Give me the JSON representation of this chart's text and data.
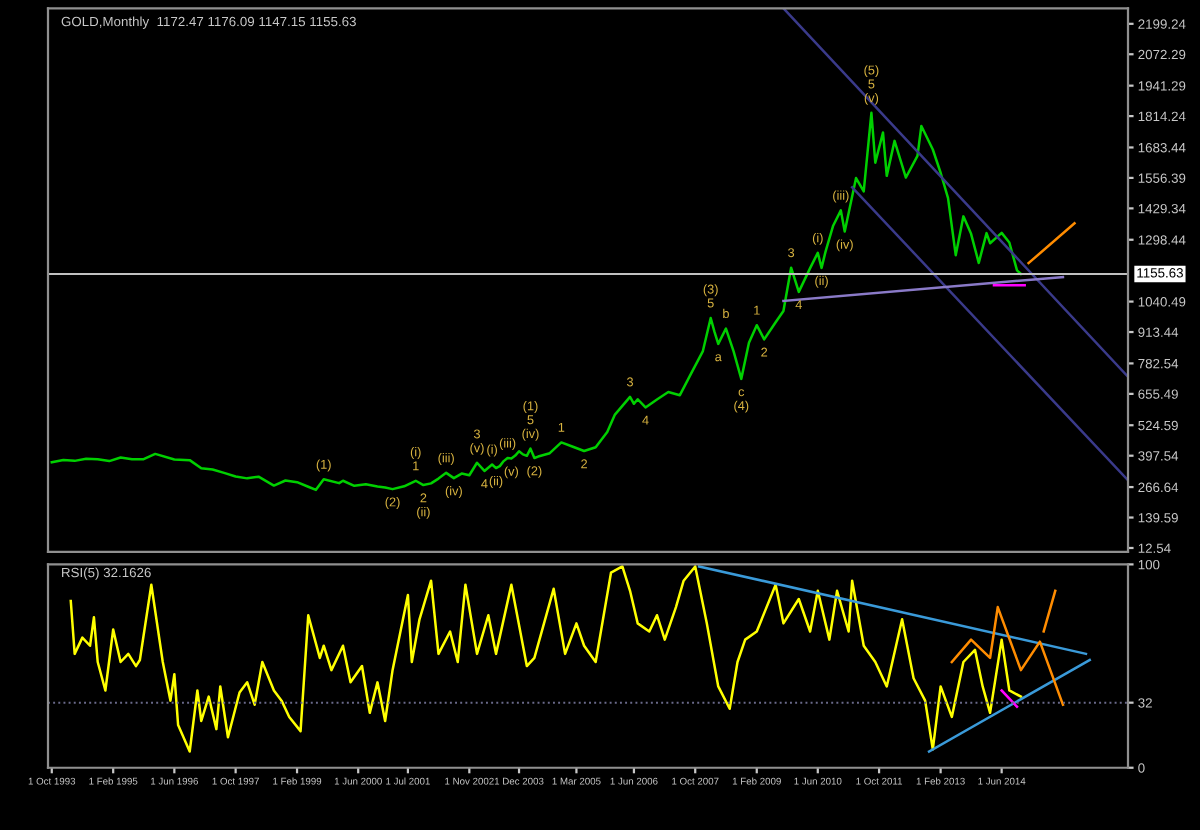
{
  "chart_data": [
    {
      "type": "line",
      "title": "GOLD,Monthly  1172.47 1176.09 1147.15 1155.63",
      "xlim": [
        "1993-09",
        "2017-03"
      ],
      "ylim": [
        -4,
        2264
      ],
      "yticks": [
        12.54,
        139.59,
        266.64,
        397.54,
        524.59,
        655.49,
        782.54,
        913.44,
        1040.49,
        1298.44,
        1429.34,
        1556.39,
        1683.44,
        1814.24,
        1941.29,
        2072.29,
        2199.24
      ],
      "tick_labels": "y",
      "ref_lines": [
        {
          "axis": "y",
          "value": 1155.63,
          "label": "1155.63",
          "color": "#c0c0c0"
        }
      ],
      "series": [
        {
          "color": "#00d000",
          "x": [
            "1993-10",
            "1994-01",
            "1994-04",
            "1994-07",
            "1994-10",
            "1995-01",
            "1995-04",
            "1995-07",
            "1995-10",
            "1996-01",
            "1996-06",
            "1996-10",
            "1997-01",
            "1997-04",
            "1997-07",
            "1997-10",
            "1998-01",
            "1998-04",
            "1998-08",
            "1998-11",
            "1999-02",
            "1999-05",
            "1999-07",
            "1999-09",
            "2000-01",
            "2000-02",
            "2000-05",
            "2000-08",
            "2000-11",
            "2001-01",
            "2001-03",
            "2001-06",
            "2001-09",
            "2001-11",
            "2002-01",
            "2002-03",
            "2002-05",
            "2002-07",
            "2002-09",
            "2002-11",
            "2003-01",
            "2003-03",
            "2003-05",
            "2003-06",
            "2003-07",
            "2003-08",
            "2003-09",
            "2003-10",
            "2003-11",
            "2003-12",
            "2004-01",
            "2004-02",
            "2004-03",
            "2004-04",
            "2004-05",
            "2004-08",
            "2004-11",
            "2005-02",
            "2005-05",
            "2005-08",
            "2005-11",
            "2006-01",
            "2006-05",
            "2006-06",
            "2006-07",
            "2006-09",
            "2006-12",
            "2007-03",
            "2007-06",
            "2007-09",
            "2007-12",
            "2008-02",
            "2008-03",
            "2008-04",
            "2008-06",
            "2008-08",
            "2008-10",
            "2008-12",
            "2009-02",
            "2009-04",
            "2009-07",
            "2009-09",
            "2009-11",
            "2010-01",
            "2010-04",
            "2010-06",
            "2010-07",
            "2010-08",
            "2010-10",
            "2010-12",
            "2011-01",
            "2011-04",
            "2011-06",
            "2011-08",
            "2011-09",
            "2011-11",
            "2011-12",
            "2012-02",
            "2012-05",
            "2012-08",
            "2012-09",
            "2012-12",
            "2013-02",
            "2013-04",
            "2013-06",
            "2013-08",
            "2013-10",
            "2013-12",
            "2014-02",
            "2014-03",
            "2014-06",
            "2014-08",
            "2014-10",
            "2014-11"
          ],
          "values": [
            370,
            380,
            376,
            385,
            383,
            375,
            390,
            383,
            383,
            405,
            382,
            379,
            345,
            340,
            326,
            311,
            303,
            310,
            273,
            294,
            287,
            268,
            255,
            299,
            283,
            293,
            272,
            278,
            269,
            265,
            258,
            270,
            293,
            275,
            282,
            302,
            326,
            304,
            323,
            316,
            368,
            334,
            361,
            346,
            354,
            375,
            388,
            386,
            398,
            416,
            403,
            397,
            427,
            388,
            394,
            408,
            453,
            435,
            417,
            433,
            496,
            569,
            643,
            614,
            633,
            599,
            632,
            663,
            650,
            743,
            834,
            972,
            916,
            864,
            928,
            833,
            718,
            869,
            942,
            883,
            954,
            1001,
            1182,
            1081,
            1180,
            1244,
            1181,
            1248,
            1357,
            1421,
            1333,
            1556,
            1500,
            1828,
            1620,
            1746,
            1565,
            1711,
            1558,
            1648,
            1773,
            1675,
            1578,
            1472,
            1234,
            1396,
            1323,
            1202,
            1326,
            1284,
            1327,
            1287,
            1171,
            1156
          ]
        },
        {
          "color": "#3a3a8a",
          "x": [
            "2009-09",
            "2017-03"
          ],
          "values": [
            2264,
            727
          ]
        },
        {
          "color": "#3a3a8a",
          "x": [
            "2011-03",
            "2017-03"
          ],
          "values": [
            1517,
            295
          ]
        },
        {
          "color": "#8a7ac8",
          "x": [
            "2009-09",
            "2015-10"
          ],
          "values": [
            1043,
            1143
          ]
        },
        {
          "color": "#ff8c00",
          "x": [
            "2016-01",
            "2015-01"
          ],
          "values": [
            1367,
            1201
          ]
        },
        {
          "color": "#ff00ff",
          "x": [
            "2014-04",
            "2014-12"
          ],
          "values": [
            1109,
            1109
          ]
        }
      ],
      "annotations": [
        {
          "text": "(1)",
          "x": "1999-09",
          "y": 299
        },
        {
          "text": "(2)",
          "x": "2001-03",
          "y": 258
        },
        {
          "text": "1",
          "x": "2001-09",
          "y": 293
        },
        {
          "text": "(i)",
          "x": "2001-09",
          "y": 293
        },
        {
          "text": "2",
          "x": "2001-11",
          "y": 275
        },
        {
          "text": "(ii)",
          "x": "2001-11",
          "y": 275
        },
        {
          "text": "(iii)",
          "x": "2002-05",
          "y": 326
        },
        {
          "text": "(iv)",
          "x": "2002-07",
          "y": 304
        },
        {
          "text": "(v)",
          "x": "2003-01",
          "y": 368
        },
        {
          "text": "3",
          "x": "2003-01",
          "y": 368
        },
        {
          "text": "4",
          "x": "2003-03",
          "y": 334
        },
        {
          "text": "(i)",
          "x": "2003-05",
          "y": 361
        },
        {
          "text": "(ii)",
          "x": "2003-06",
          "y": 346
        },
        {
          "text": "(iii)",
          "x": "2003-09",
          "y": 388
        },
        {
          "text": "(v)",
          "x": "2003-10",
          "y": 386
        },
        {
          "text": "(iv)",
          "x": "2004-03",
          "y": 427
        },
        {
          "text": "5",
          "x": "2004-03",
          "y": 427
        },
        {
          "text": "(1)",
          "x": "2004-03",
          "y": 427
        },
        {
          "text": "(2)",
          "x": "2004-04",
          "y": 388
        },
        {
          "text": "1",
          "x": "2004-11",
          "y": 453
        },
        {
          "text": "2",
          "x": "2005-05",
          "y": 417
        },
        {
          "text": "3",
          "x": "2006-05",
          "y": 643
        },
        {
          "text": "4",
          "x": "2006-09",
          "y": 599
        },
        {
          "text": "5",
          "x": "2008-02",
          "y": 972
        },
        {
          "text": "(3)",
          "x": "2008-02",
          "y": 972
        },
        {
          "text": "a",
          "x": "2008-04",
          "y": 864
        },
        {
          "text": "b",
          "x": "2008-06",
          "y": 928
        },
        {
          "text": "c",
          "x": "2008-10",
          "y": 718
        },
        {
          "text": "(4)",
          "x": "2008-10",
          "y": 718
        },
        {
          "text": "1",
          "x": "2009-02",
          "y": 942
        },
        {
          "text": "2",
          "x": "2009-04",
          "y": 883
        },
        {
          "text": "3",
          "x": "2009-11",
          "y": 1182
        },
        {
          "text": "4",
          "x": "2010-01",
          "y": 1081
        },
        {
          "text": "(i)",
          "x": "2010-06",
          "y": 1244
        },
        {
          "text": "(ii)",
          "x": "2010-07",
          "y": 1181
        },
        {
          "text": "(iii)",
          "x": "2010-12",
          "y": 1421
        },
        {
          "text": "(iv)",
          "x": "2011-01",
          "y": 1333
        },
        {
          "text": "(v)",
          "x": "2011-08",
          "y": 1828
        },
        {
          "text": "5",
          "x": "2011-08",
          "y": 1828
        },
        {
          "text": "(5)",
          "x": "2011-08",
          "y": 1828
        }
      ]
    },
    {
      "type": "line",
      "title": "RSI(5) 32.1626",
      "xlim": [
        "1993-09",
        "2017-03"
      ],
      "ylim": [
        0,
        100
      ],
      "yticks": [
        0,
        32,
        100
      ],
      "xticks": [
        {
          "value": "1993-10-01",
          "label": "1 Oct 1993"
        },
        {
          "value": "1995-02-01",
          "label": "1 Feb 1995"
        },
        {
          "value": "1996-06-01",
          "label": "1 Jun 1996"
        },
        {
          "value": "1997-10-01",
          "label": "1 Oct 1997"
        },
        {
          "value": "1999-02-01",
          "label": "1 Feb 1999"
        },
        {
          "value": "2000-06-01",
          "label": "1 Jun 2000"
        },
        {
          "value": "2001-07-01",
          "label": "1 Jul 2001"
        },
        {
          "value": "2002-11-01",
          "label": "1 Nov 2002"
        },
        {
          "value": "2003-12-01",
          "label": "1 Dec 2003"
        },
        {
          "value": "2005-03-01",
          "label": "1 Mar 2005"
        },
        {
          "value": "2006-06-01",
          "label": "1 Jun 2006"
        },
        {
          "value": "2007-10-01",
          "label": "1 Oct 2007"
        },
        {
          "value": "2009-02-01",
          "label": "1 Feb 2009"
        },
        {
          "value": "2010-06-01",
          "label": "1 Jun 2010"
        },
        {
          "value": "2011-10-01",
          "label": "1 Oct 2011"
        },
        {
          "value": "2013-02-01",
          "label": "1 Feb 2013"
        },
        {
          "value": "2014-06-01",
          "label": "1 Jun 2014"
        }
      ],
      "ref_lines": [
        {
          "axis": "y",
          "value": 32,
          "color": "#6a6a8a",
          "line_style": "dotted"
        }
      ],
      "series": [
        {
          "color": "#ffff00",
          "x": [
            "1994-03",
            "1994-04",
            "1994-06",
            "1994-08",
            "1994-09",
            "1994-10",
            "1994-12",
            "1995-02",
            "1995-04",
            "1995-06",
            "1995-08",
            "1995-09",
            "1995-12",
            "1996-03",
            "1996-05",
            "1996-06",
            "1996-07",
            "1996-10",
            "1996-12",
            "1997-01",
            "1997-03",
            "1997-05",
            "1997-06",
            "1997-08",
            "1997-11",
            "1998-01",
            "1998-03",
            "1998-05",
            "1998-08",
            "1998-10",
            "1998-12",
            "1999-03",
            "1999-05",
            "1999-08",
            "1999-09",
            "1999-11",
            "2000-02",
            "2000-04",
            "2000-07",
            "2000-09",
            "2000-11",
            "2001-01",
            "2001-03",
            "2001-07",
            "2001-08",
            "2001-10",
            "2002-01",
            "2002-03",
            "2002-06",
            "2002-08",
            "2002-10",
            "2003-01",
            "2003-04",
            "2003-06",
            "2003-10",
            "2004-02",
            "2004-04",
            "2004-09",
            "2004-12",
            "2005-03",
            "2005-05",
            "2005-08",
            "2005-12",
            "2006-03",
            "2006-05",
            "2006-07",
            "2006-10",
            "2006-12",
            "2007-02",
            "2007-05",
            "2007-07",
            "2007-10",
            "2008-01",
            "2008-04",
            "2008-07",
            "2008-09",
            "2008-11",
            "2009-02",
            "2009-07",
            "2009-09",
            "2010-01",
            "2010-04",
            "2010-06",
            "2010-09",
            "2010-11",
            "2011-02",
            "2011-03",
            "2011-06",
            "2011-09",
            "2011-12",
            "2012-04",
            "2012-07",
            "2012-10",
            "2012-12",
            "2013-02",
            "2013-05",
            "2013-08",
            "2013-11",
            "2014-01",
            "2014-03",
            "2014-06",
            "2014-08",
            "2014-11"
          ],
          "values": [
            82,
            56,
            64,
            60,
            74,
            52,
            38,
            68,
            52,
            56,
            50,
            53,
            90,
            52,
            33,
            46,
            21,
            8,
            38,
            23,
            35,
            19,
            40,
            15,
            37,
            42,
            31,
            52,
            38,
            33,
            25,
            18,
            75,
            54,
            60,
            48,
            60,
            42,
            50,
            27,
            42,
            23,
            48,
            85,
            52,
            73,
            92,
            56,
            67,
            52,
            90,
            56,
            75,
            56,
            90,
            50,
            54,
            88,
            56,
            71,
            60,
            52,
            96,
            99,
            87,
            71,
            67,
            75,
            63,
            79,
            92,
            99,
            71,
            40,
            29,
            52,
            63,
            67,
            90,
            71,
            83,
            67,
            87,
            63,
            87,
            67,
            92,
            60,
            52,
            40,
            73,
            44,
            33,
            9,
            40,
            25,
            52,
            58,
            40,
            27,
            63,
            38,
            35
          ]
        },
        {
          "color": "#3a9ad9",
          "x": [
            "2007-11",
            "2016-04"
          ],
          "values": [
            99,
            56
          ]
        },
        {
          "color": "#3a9ad9",
          "x": [
            "2012-11",
            "2016-05"
          ],
          "values": [
            8,
            53
          ]
        },
        {
          "color": "#ff8c00",
          "x": [
            "2013-05",
            "2013-10",
            "2014-03",
            "2014-05",
            "2014-11",
            "2015-04",
            "2015-10"
          ],
          "values": [
            52,
            63,
            54,
            79,
            48,
            62,
            31
          ]
        },
        {
          "color": "#ff8c00",
          "x": [
            "2015-08",
            "2015-05"
          ],
          "values": [
            87,
            67
          ]
        },
        {
          "color": "#ff00ff",
          "x": [
            "2014-06",
            "2014-10"
          ],
          "values": [
            38,
            30
          ]
        }
      ]
    }
  ]
}
